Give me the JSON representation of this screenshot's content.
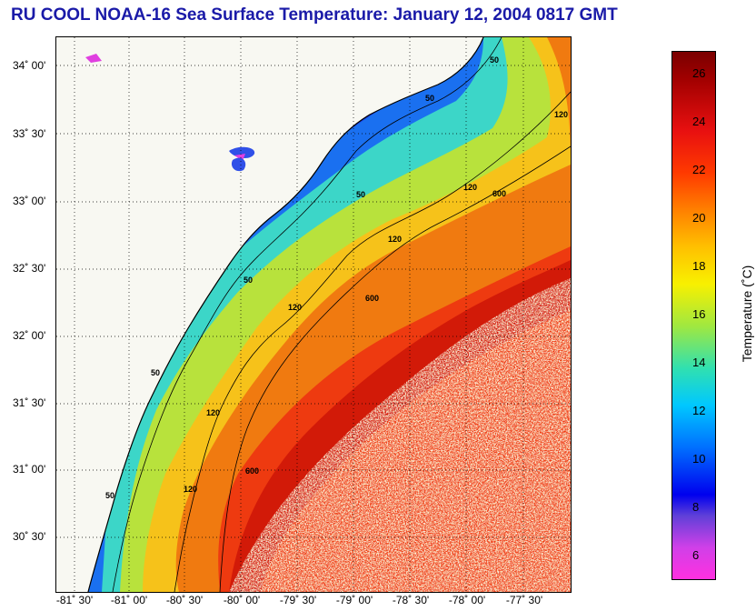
{
  "title": "RU COOL  NOAA-16  Sea Surface Temperature:  January 12, 2004 0817 GMT",
  "map": {
    "lat_labels": [
      "34˚ 00'",
      "33˚ 30'",
      "33˚ 00'",
      "32˚ 30'",
      "32˚ 00'",
      "31˚ 30'",
      "31˚ 00'",
      "30˚ 30'"
    ],
    "lon_labels": [
      "-81˚ 30'",
      "-81˚ 00'",
      "-80˚ 30'",
      "-80˚ 00'",
      "-79˚ 30'",
      "-79˚ 00'",
      "-78˚ 30'",
      "-78˚ 00'",
      "-77˚ 30'"
    ],
    "contour_labels": [
      "50",
      "50",
      "50",
      "50",
      "50",
      "50",
      "120",
      "120",
      "120",
      "120",
      "120",
      "120",
      "600",
      "600",
      "600"
    ]
  },
  "colorbar": {
    "label": "Temperature (˚C)",
    "ticks": [
      "26",
      "24",
      "22",
      "20",
      "18",
      "16",
      "14",
      "12",
      "10",
      "8",
      "6"
    ],
    "min": 5,
    "max": 27
  },
  "colors": {
    "title": "#1a1aa8"
  }
}
